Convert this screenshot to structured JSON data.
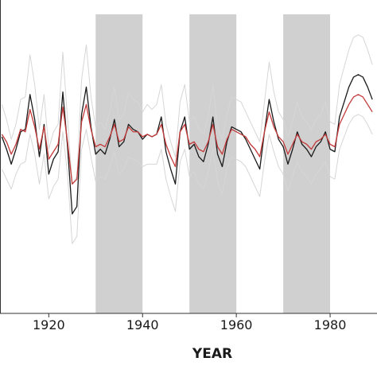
{
  "chart_data": {
    "type": "line",
    "title": "",
    "xlabel": "YEAR",
    "ylabel": "",
    "xlim": [
      1910,
      1989
    ],
    "ylim": [
      -3.6,
      2.7
    ],
    "x_ticks": [
      {
        "value": 1920,
        "label": "1920"
      },
      {
        "value": 1940,
        "label": "1940"
      },
      {
        "value": 1960,
        "label": "1960"
      },
      {
        "value": 1980,
        "label": "1980"
      }
    ],
    "shaded_decades": [
      [
        1930,
        1940
      ],
      [
        1950,
        1960
      ],
      [
        1970,
        1980
      ]
    ],
    "grid": false,
    "legend": "none",
    "x": [
      1910,
      1911,
      1912,
      1913,
      1914,
      1915,
      1916,
      1917,
      1918,
      1919,
      1920,
      1921,
      1922,
      1923,
      1924,
      1925,
      1926,
      1927,
      1928,
      1929,
      1930,
      1931,
      1932,
      1933,
      1934,
      1935,
      1936,
      1937,
      1938,
      1939,
      1940,
      1941,
      1942,
      1943,
      1944,
      1945,
      1946,
      1947,
      1948,
      1949,
      1950,
      1951,
      1952,
      1953,
      1954,
      1955,
      1956,
      1957,
      1958,
      1959,
      1960,
      1961,
      1962,
      1963,
      1964,
      1965,
      1966,
      1967,
      1968,
      1969,
      1970,
      1971,
      1972,
      1973,
      1974,
      1975,
      1976,
      1977,
      1978,
      1979,
      1980,
      1981,
      1982,
      1983,
      1984,
      1985,
      1986,
      1987,
      1988,
      1989
    ],
    "series": [
      {
        "color": "#1a1a1a",
        "values": [
          -0.05,
          -0.3,
          -0.6,
          -0.3,
          0.05,
          0.1,
          0.8,
          0.3,
          -0.45,
          0.2,
          -0.8,
          -0.5,
          -0.35,
          0.85,
          -0.25,
          -1.6,
          -1.45,
          0.4,
          0.95,
          0.15,
          -0.4,
          -0.3,
          -0.4,
          -0.1,
          0.3,
          -0.25,
          -0.15,
          0.2,
          0.1,
          0.05,
          -0.1,
          0.0,
          -0.05,
          0.0,
          0.35,
          -0.35,
          -0.7,
          -1.0,
          0.05,
          0.35,
          -0.3,
          -0.2,
          -0.45,
          -0.55,
          -0.2,
          0.35,
          -0.4,
          -0.65,
          -0.15,
          0.15,
          0.1,
          0.05,
          -0.1,
          -0.3,
          -0.5,
          -0.7,
          0.05,
          0.7,
          0.25,
          -0.1,
          -0.25,
          -0.6,
          -0.3,
          0.05,
          -0.2,
          -0.3,
          -0.45,
          -0.25,
          -0.15,
          0.05,
          -0.3,
          -0.35,
          0.35,
          0.65,
          0.95,
          1.15,
          1.2,
          1.15,
          0.95,
          0.7
        ]
      },
      {
        "color": "#c43a3a",
        "values": [
          0.0,
          -0.15,
          -0.4,
          -0.2,
          0.1,
          0.05,
          0.5,
          0.15,
          -0.3,
          0.15,
          -0.5,
          -0.35,
          -0.2,
          0.55,
          -0.15,
          -1.0,
          -0.9,
          0.25,
          0.6,
          0.1,
          -0.25,
          -0.2,
          -0.25,
          -0.05,
          0.2,
          -0.15,
          -0.1,
          0.15,
          0.05,
          0.05,
          -0.05,
          0.0,
          -0.05,
          0.0,
          0.2,
          -0.2,
          -0.45,
          -0.65,
          0.05,
          0.2,
          -0.2,
          -0.15,
          -0.3,
          -0.35,
          -0.15,
          0.2,
          -0.25,
          -0.4,
          -0.1,
          0.1,
          0.05,
          0.0,
          -0.05,
          -0.2,
          -0.3,
          -0.45,
          0.05,
          0.45,
          0.15,
          -0.05,
          -0.15,
          -0.4,
          -0.2,
          0.0,
          -0.15,
          -0.2,
          -0.3,
          -0.15,
          -0.1,
          0.0,
          -0.2,
          -0.25,
          0.2,
          0.4,
          0.6,
          0.75,
          0.8,
          0.75,
          0.6,
          0.45
        ]
      },
      {
        "color": "#d6d6d6",
        "values": [
          0.6,
          0.3,
          -0.1,
          0.2,
          0.7,
          0.75,
          1.6,
          1.0,
          0.1,
          0.8,
          -0.3,
          0.05,
          0.2,
          1.65,
          0.3,
          -1.0,
          -0.85,
          1.1,
          1.8,
          0.75,
          0.15,
          0.25,
          0.1,
          0.45,
          0.95,
          0.3,
          0.4,
          0.85,
          0.7,
          0.65,
          0.45,
          0.6,
          0.5,
          0.6,
          1.0,
          0.2,
          -0.15,
          -0.45,
          0.65,
          1.0,
          0.25,
          0.35,
          0.1,
          0.0,
          0.35,
          1.0,
          0.15,
          -0.1,
          0.4,
          0.75,
          0.7,
          0.65,
          0.45,
          0.25,
          0.05,
          -0.15,
          0.65,
          1.45,
          0.85,
          0.45,
          0.3,
          -0.05,
          0.25,
          0.65,
          0.35,
          0.25,
          0.1,
          0.3,
          0.4,
          0.65,
          0.25,
          0.2,
          1.0,
          1.35,
          1.7,
          1.95,
          2.0,
          1.95,
          1.7,
          1.4
        ]
      },
      {
        "color": "#d6d6d6",
        "values": [
          -0.7,
          -0.9,
          -1.1,
          -0.8,
          -0.6,
          -0.55,
          0.0,
          -0.4,
          -1.0,
          -0.4,
          -1.3,
          -1.05,
          -0.9,
          0.05,
          -0.8,
          -2.2,
          -2.05,
          -0.3,
          0.1,
          -0.45,
          -0.95,
          -0.85,
          -0.9,
          -0.65,
          -0.35,
          -0.8,
          -0.7,
          -0.45,
          -0.5,
          -0.55,
          -0.65,
          -0.6,
          -0.6,
          -0.6,
          -0.3,
          -0.9,
          -1.25,
          -1.55,
          -0.55,
          -0.3,
          -0.85,
          -0.75,
          -1.0,
          -1.1,
          -0.75,
          -0.3,
          -0.95,
          -1.2,
          -0.7,
          -0.45,
          -0.5,
          -0.55,
          -0.65,
          -0.85,
          -1.05,
          -1.25,
          -0.55,
          0.0,
          -0.35,
          -0.65,
          -0.8,
          -1.15,
          -0.85,
          -0.55,
          -0.75,
          -0.85,
          -1.0,
          -0.8,
          -0.7,
          -0.55,
          -0.85,
          -0.9,
          -0.3,
          -0.05,
          0.2,
          0.35,
          0.4,
          0.35,
          0.2,
          0.0
        ]
      }
    ]
  }
}
